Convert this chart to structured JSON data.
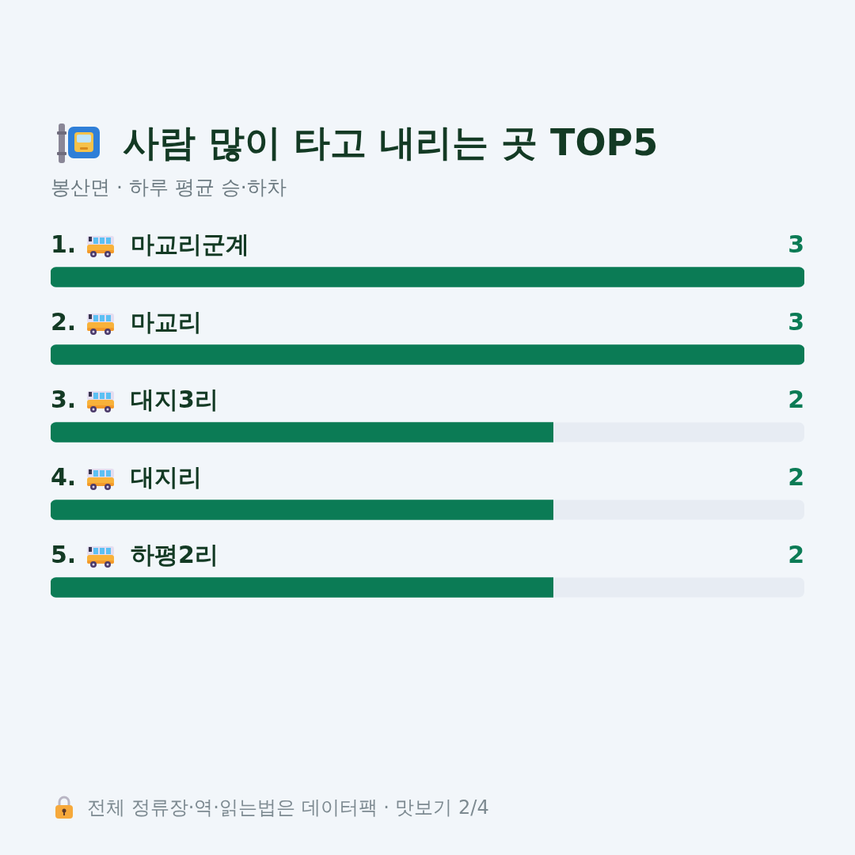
{
  "chart_data": {
    "type": "bar",
    "orientation": "horizontal",
    "title": "사람 많이 타고 내리는 곳 TOP5",
    "subtitle": "봉산면 · 하루 평균 승·하차",
    "categories": [
      "1. 마교리군계",
      "2. 마교리",
      "3. 대지3리",
      "4. 대지리",
      "5. 하평2리"
    ],
    "values": [
      3,
      3,
      2,
      2,
      2
    ],
    "color": "#0b7b55",
    "xlim": [
      0,
      3
    ],
    "data_labels": true,
    "annotations": [
      "전체 정류장·역·읽는법은 데이터팩 · 맛보기 2/4"
    ]
  }
}
